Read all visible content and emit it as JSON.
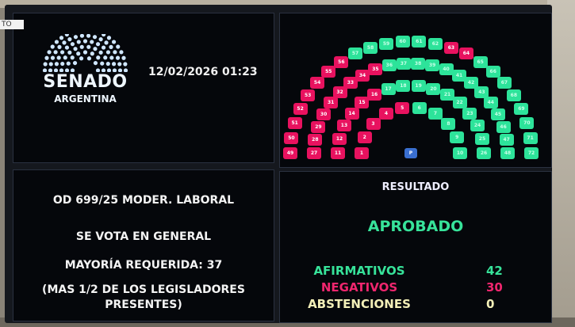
{
  "overlay_tag": "TO",
  "header": {
    "logo_title": "SENADO",
    "logo_subtitle": "ARGENTINA",
    "datetime": "12/02/2026 01:23"
  },
  "motion": {
    "title": "OD 699/25 MODER. LABORAL",
    "vote_type": "SE VOTA EN GENERAL",
    "majority": "MAYORÍA REQUERIDA: 37",
    "majority_note_1": "(MAS 1/2 DE LOS LEGISLADORES",
    "majority_note_2": "PRESENTES)"
  },
  "result": {
    "title": "RESULTADO",
    "status": "APROBADO",
    "rows": [
      {
        "label": "AFIRMATIVOS",
        "value": "42",
        "color": "#37e39a"
      },
      {
        "label": "NEGATIVOS",
        "value": "30",
        "color": "#f0266e"
      },
      {
        "label": "ABSTENCIONES",
        "value": "0",
        "color": "#f3efb8"
      }
    ]
  },
  "seating": {
    "total_seats": 72,
    "arcs": [
      [
        1,
        10
      ],
      [
        11,
        26
      ],
      [
        27,
        48
      ],
      [
        49,
        72
      ]
    ],
    "negative_seats": [
      1,
      2,
      3,
      4,
      5,
      11,
      12,
      13,
      14,
      15,
      16,
      27,
      28,
      29,
      30,
      31,
      32,
      33,
      34,
      35,
      49,
      50,
      51,
      52,
      53,
      54,
      55,
      56,
      63,
      64
    ],
    "president_label": "P",
    "colors": {
      "affirmative": "#2de39a",
      "negative": "#e8125f",
      "president": "#3a6fd0"
    }
  }
}
